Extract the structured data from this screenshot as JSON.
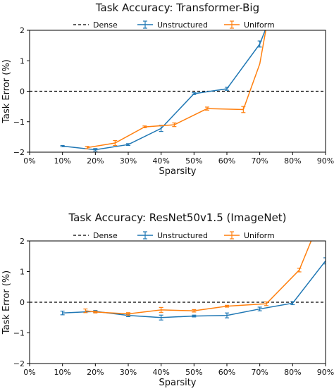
{
  "colors": {
    "unstructured": "#1f77b4",
    "uniform": "#ff7f0e",
    "dense": "#000000"
  },
  "chart_data": [
    {
      "type": "line",
      "title": "Task Accuracy: Transformer-Big",
      "xlabel": "Sparsity",
      "ylabel": "Task Error (%)",
      "xlim": [
        0,
        90
      ],
      "ylim": [
        -2,
        2
      ],
      "xticks": [
        "0%",
        "10%",
        "20%",
        "30%",
        "40%",
        "50%",
        "60%",
        "70%",
        "80%",
        "90%"
      ],
      "yticks": [
        "2",
        "1",
        "0",
        "−1",
        "−2"
      ],
      "legend": {
        "position": "top-center",
        "entries": [
          "Dense",
          "Unstructured",
          "Uniform"
        ]
      },
      "dense_line": 0,
      "series": [
        {
          "name": "Unstructured",
          "x": [
            10,
            20,
            30,
            40,
            50,
            60,
            70,
            72
          ],
          "y": [
            -1.8,
            -1.92,
            -1.75,
            -1.22,
            -0.08,
            0.08,
            1.55,
            2.1
          ],
          "err": [
            0.02,
            0.04,
            0.03,
            0.1,
            0.03,
            0.05,
            0.1,
            0
          ]
        },
        {
          "name": "Uniform",
          "x": [
            17.5,
            26,
            35,
            44,
            54,
            65,
            70,
            72
          ],
          "y": [
            -1.85,
            -1.7,
            -1.17,
            -1.1,
            -0.57,
            -0.6,
            0.9,
            2.1
          ],
          "err": [
            0.04,
            0.08,
            0.03,
            0.06,
            0.05,
            0.1,
            0,
            0
          ]
        }
      ]
    },
    {
      "type": "line",
      "title": "Task Accuracy: ResNet50v1.5 (ImageNet)",
      "xlabel": "Sparsity",
      "ylabel": "Task Error (%)",
      "xlim": [
        0,
        90
      ],
      "ylim": [
        -2,
        2
      ],
      "xticks": [
        "0%",
        "10%",
        "20%",
        "30%",
        "40%",
        "50%",
        "60%",
        "70%",
        "80%",
        "90%"
      ],
      "yticks": [
        "2",
        "1",
        "0",
        "−1",
        "−2"
      ],
      "legend": {
        "position": "top-center",
        "entries": [
          "Dense",
          "Unstructured",
          "Uniform"
        ]
      },
      "dense_line": 0,
      "series": [
        {
          "name": "Unstructured",
          "x": [
            10,
            20,
            30,
            40,
            50,
            60,
            70,
            80,
            90
          ],
          "y": [
            -0.35,
            -0.3,
            -0.43,
            -0.5,
            -0.45,
            -0.43,
            -0.22,
            -0.03,
            1.35
          ],
          "err": [
            0.06,
            0.03,
            0.04,
            0.08,
            0.03,
            0.08,
            0.06,
            0.05,
            0.1
          ]
        },
        {
          "name": "Uniform",
          "x": [
            17,
            20,
            30,
            40,
            50,
            60,
            72,
            82,
            86
          ],
          "y": [
            -0.28,
            -0.32,
            -0.38,
            -0.25,
            -0.28,
            -0.13,
            -0.05,
            1.05,
            2.1
          ],
          "err": [
            0.06,
            0.03,
            0.04,
            0.08,
            0.04,
            0.03,
            0.06,
            0.06,
            0
          ]
        }
      ]
    }
  ]
}
